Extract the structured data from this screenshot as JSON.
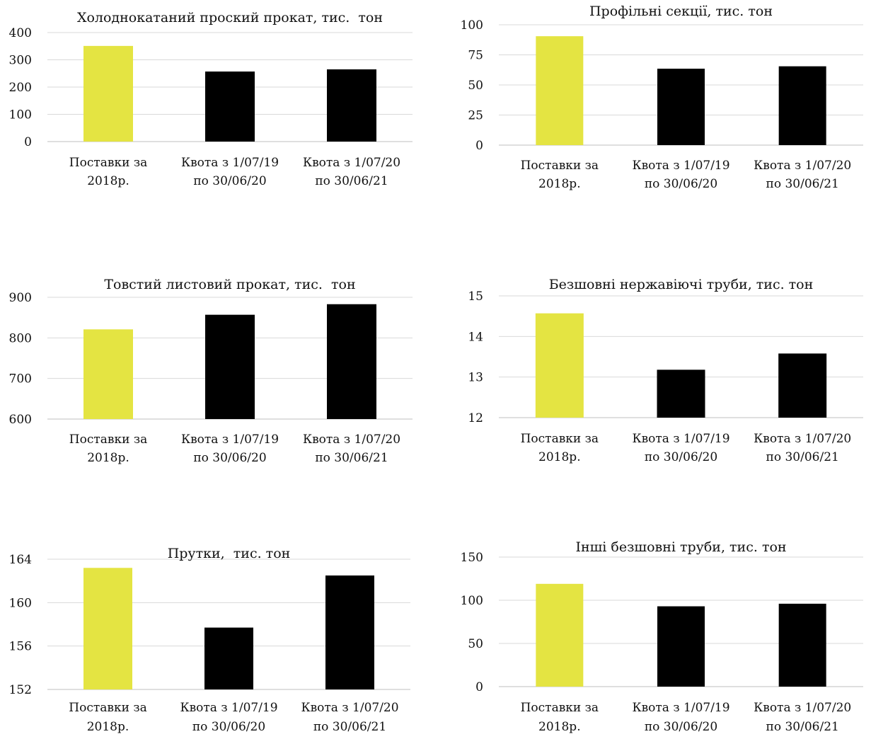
{
  "chart_data": [
    {
      "type": "bar",
      "title": "Холоднокатаний проский прокат, тис.  тон",
      "categories": [
        [
          "Поставки  за",
          "2018р."
        ],
        [
          "Квота з 1/07/19",
          "по 30/06/20"
        ],
        [
          "Квота з 1/07/20",
          "по 30/06/21"
        ]
      ],
      "values": [
        351,
        257,
        265
      ],
      "ylim": [
        0,
        400
      ],
      "yticks": [
        "0",
        "100",
        "200",
        "300",
        "400"
      ],
      "bar_colors": [
        "#e4e442",
        "#000000",
        "#000000"
      ],
      "grid": true
    },
    {
      "type": "bar",
      "title": "Профільні секції, тис. тон",
      "categories": [
        [
          "Поставки  за",
          "2018р."
        ],
        [
          "Квота з 1/07/19",
          "по 30/06/20"
        ],
        [
          "Квота з 1/07/20",
          "по 30/06/21"
        ]
      ],
      "values": [
        90.5,
        63.5,
        65.5
      ],
      "ylim": [
        0,
        100
      ],
      "yticks": [
        "0",
        "25",
        "50",
        "75",
        "100"
      ],
      "bar_colors": [
        "#e4e442",
        "#000000",
        "#000000"
      ],
      "grid": true
    },
    {
      "type": "bar",
      "title": "Товстий листовий прокат, тис.  тон",
      "categories": [
        [
          "Поставки  за",
          "2018р."
        ],
        [
          "Квота з 1/07/19",
          "по 30/06/20"
        ],
        [
          "Квота з 1/07/20",
          "по 30/06/21"
        ]
      ],
      "values": [
        821,
        857,
        883
      ],
      "ylim": [
        600,
        900
      ],
      "yticks": [
        "600",
        "700",
        "800",
        "900"
      ],
      "bar_colors": [
        "#e4e442",
        "#000000",
        "#000000"
      ],
      "grid": true
    },
    {
      "type": "bar",
      "title": "Безшовні нержавіючі труби, тис. тон",
      "categories": [
        [
          "Поставки  за",
          "2018р."
        ],
        [
          "Квота з 1/07/19",
          "по 30/06/20"
        ],
        [
          "Квота з 1/07/20",
          "по 30/06/21"
        ]
      ],
      "values": [
        14.57,
        13.18,
        13.58
      ],
      "ylim": [
        12,
        15
      ],
      "yticks": [
        "12",
        "13",
        "14",
        "15"
      ],
      "bar_colors": [
        "#e4e442",
        "#000000",
        "#000000"
      ],
      "grid": true
    },
    {
      "type": "bar",
      "title": "Прутки,  тис. тон",
      "categories": [
        [
          "Поставки  за",
          "2018р."
        ],
        [
          "Квота з 1/07/19",
          "по 30/06/20"
        ],
        [
          "Квота з 1/07/20",
          "по 30/06/21"
        ]
      ],
      "values": [
        163.2,
        157.7,
        162.5
      ],
      "ylim": [
        152,
        164
      ],
      "yticks": [
        "152",
        "156",
        "160",
        "164"
      ],
      "bar_colors": [
        "#e4e442",
        "#000000",
        "#000000"
      ],
      "grid": true
    },
    {
      "type": "bar",
      "title": "Інші безшовні труби, тис. тон",
      "categories": [
        [
          "Поставки  за",
          "2018р."
        ],
        [
          "Квота з 1/07/19",
          "по 30/06/20"
        ],
        [
          "Квота з 1/07/20",
          "по 30/06/21"
        ]
      ],
      "values": [
        119,
        93,
        96
      ],
      "ylim": [
        0,
        150
      ],
      "yticks": [
        "0",
        "50",
        "100",
        "150"
      ],
      "bar_colors": [
        "#e4e442",
        "#000000",
        "#000000"
      ],
      "grid": true
    }
  ]
}
